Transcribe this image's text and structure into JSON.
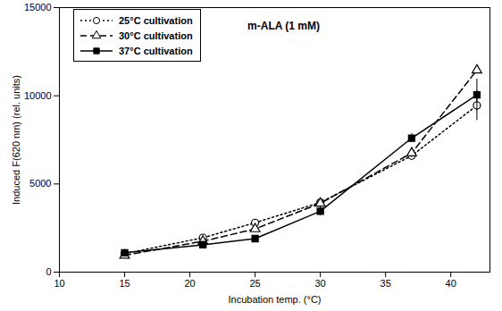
{
  "chart_data": {
    "type": "line",
    "title": "m-ALA (1 mM)",
    "x_label": "Incubation temp. (°C)",
    "y_label": "Induced F(620 nm) (rel. units)",
    "xlim": [
      10,
      43
    ],
    "xticks": [
      10,
      15,
      20,
      25,
      30,
      35,
      40
    ],
    "ylim": [
      0,
      15000
    ],
    "yticks": [
      0,
      5000,
      10000,
      15000
    ],
    "grid": false,
    "legend": "top-left",
    "x": [
      15,
      21,
      25,
      30,
      37,
      42
    ],
    "series": [
      {
        "name": "25°C cultivation",
        "color": "#000000",
        "marker": "circle_open",
        "line_style": "dotted",
        "values": [
          1050,
          1950,
          2800,
          3950,
          6600,
          9450
        ],
        "errors": [
          100,
          100,
          100,
          150,
          200,
          850
        ]
      },
      {
        "name": "30°C cultivation",
        "color": "#000000",
        "marker": "triangle_open",
        "line_style": "dashed",
        "values": [
          950,
          1750,
          2450,
          3900,
          6750,
          11450
        ],
        "errors": [
          100,
          100,
          100,
          100,
          250,
          150
        ]
      },
      {
        "name": "37°C cultivation",
        "color": "#000000",
        "marker": "square",
        "line_style": "solid",
        "values": [
          1100,
          1550,
          1900,
          3450,
          7600,
          10050
        ],
        "errors": [
          100,
          200,
          100,
          250,
          250,
          900
        ]
      }
    ]
  }
}
